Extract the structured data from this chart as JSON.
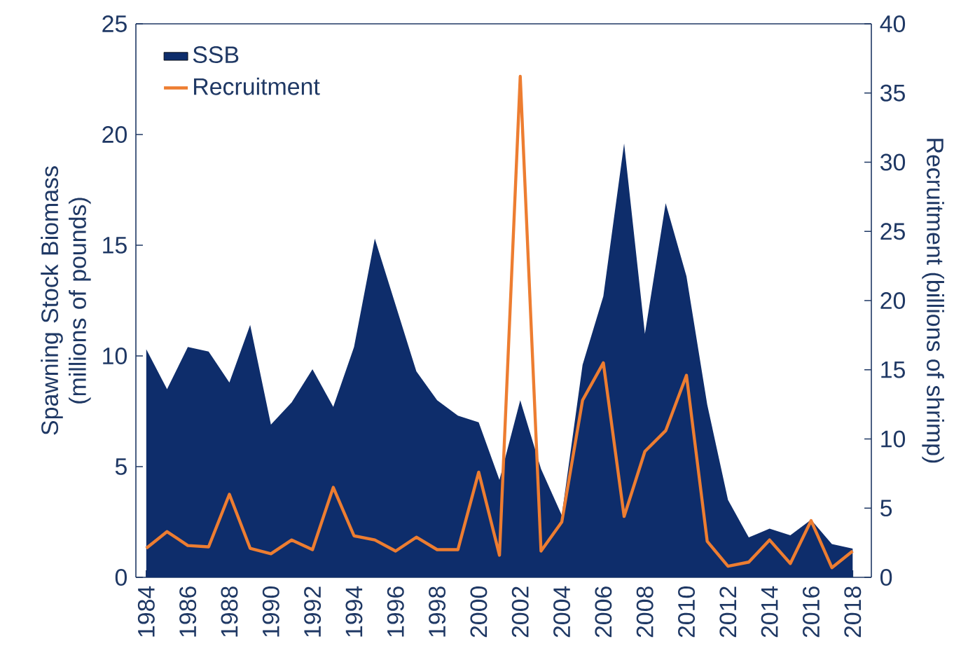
{
  "chart_data": {
    "type": "area",
    "xlabel": null,
    "ylabel": "Spawning Stock Biomass (millions of pounds)",
    "y2label": "Recruitment (billions of shrimp)",
    "x": [
      1984,
      1985,
      1986,
      1987,
      1988,
      1989,
      1990,
      1991,
      1992,
      1993,
      1994,
      1995,
      1996,
      1997,
      1998,
      1999,
      2000,
      2001,
      2002,
      2003,
      2004,
      2005,
      2006,
      2007,
      2008,
      2009,
      2010,
      2011,
      2012,
      2013,
      2014,
      2015,
      2016,
      2017,
      2018
    ],
    "series": [
      {
        "name": "SSB",
        "color": "#0e2d6b",
        "values": [
          10.3,
          8.5,
          10.4,
          10.2,
          8.8,
          11.4,
          6.9,
          7.9,
          9.4,
          7.7,
          10.4,
          15.3,
          12.3,
          9.3,
          8.0,
          7.3,
          7.0,
          4.4,
          8.0,
          4.9,
          2.8,
          9.6,
          12.7,
          19.6,
          11.0,
          16.9,
          13.6,
          7.8,
          3.5,
          1.8,
          2.2,
          1.9,
          2.6,
          1.5,
          1.3
        ]
      },
      {
        "name": "Recruitment",
        "type": "line",
        "axis": "y2",
        "color": "#ed7d31",
        "values": [
          2.1,
          3.3,
          2.3,
          2.2,
          6.0,
          2.1,
          1.7,
          2.7,
          2.0,
          6.5,
          3.0,
          2.7,
          1.9,
          2.9,
          2.0,
          2.0,
          7.6,
          1.6,
          36.2,
          1.9,
          4.0,
          12.8,
          15.5,
          4.4,
          9.1,
          10.6,
          14.6,
          2.6,
          0.8,
          1.1,
          2.7,
          1.0,
          4.1,
          0.7,
          1.9
        ]
      }
    ],
    "xlim": [
      1983.5,
      2018.9
    ],
    "xticks": [
      1984,
      1986,
      1988,
      1990,
      1992,
      1994,
      1996,
      1998,
      2000,
      2002,
      2004,
      2006,
      2008,
      2010,
      2012,
      2014,
      2016,
      2018
    ],
    "ylim": [
      0,
      25
    ],
    "yticks": [
      0,
      5,
      10,
      15,
      20,
      25
    ],
    "y2lim": [
      0,
      40
    ],
    "y2ticks": [
      0,
      5,
      10,
      15,
      20,
      25,
      30,
      35,
      40
    ],
    "grid": false,
    "legend": "top left",
    "line_style": "solid",
    "marker": "none"
  }
}
